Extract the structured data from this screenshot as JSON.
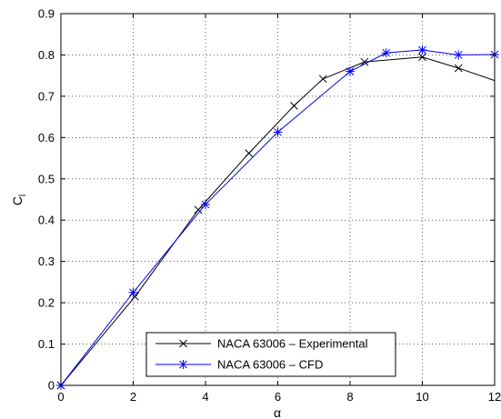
{
  "chart_data": {
    "type": "line",
    "xlabel": "α",
    "ylabel": "C",
    "ylabel_subscript": "l",
    "xlim": [
      0,
      12
    ],
    "ylim": [
      0,
      0.9
    ],
    "xticks": [
      0,
      2,
      4,
      6,
      8,
      10,
      12
    ],
    "xtick_labels": [
      "0",
      "2",
      "4",
      "6",
      "8",
      "10",
      "12"
    ],
    "yticks": [
      0,
      0.1,
      0.2,
      0.3,
      0.4,
      0.5,
      0.6,
      0.7,
      0.8,
      0.9
    ],
    "ytick_labels": [
      "0",
      "0.1",
      "0.2",
      "0.3",
      "0.4",
      "0.5",
      "0.6",
      "0.7",
      "0.8",
      "0.9"
    ],
    "grid": true,
    "legend_position": "bottom-center",
    "series": [
      {
        "name": "NACA 63006 – Experimental",
        "color": "#000000",
        "marker": "x",
        "x": [
          0,
          2.05,
          3.8,
          5.2,
          6.45,
          7.25,
          8.4,
          10.0,
          11.0,
          12.0
        ],
        "y": [
          0,
          0.215,
          0.425,
          0.562,
          0.677,
          0.742,
          0.783,
          0.795,
          0.768,
          0.738
        ],
        "marker_points": 9
      },
      {
        "name": "NACA 63006 – CFD",
        "color": "#0000ff",
        "marker": "*",
        "x": [
          0,
          2,
          4,
          6,
          8,
          9,
          10,
          11,
          12
        ],
        "y": [
          0,
          0.225,
          0.438,
          0.613,
          0.76,
          0.805,
          0.812,
          0.8,
          0.801
        ],
        "marker_points": 9
      }
    ]
  }
}
